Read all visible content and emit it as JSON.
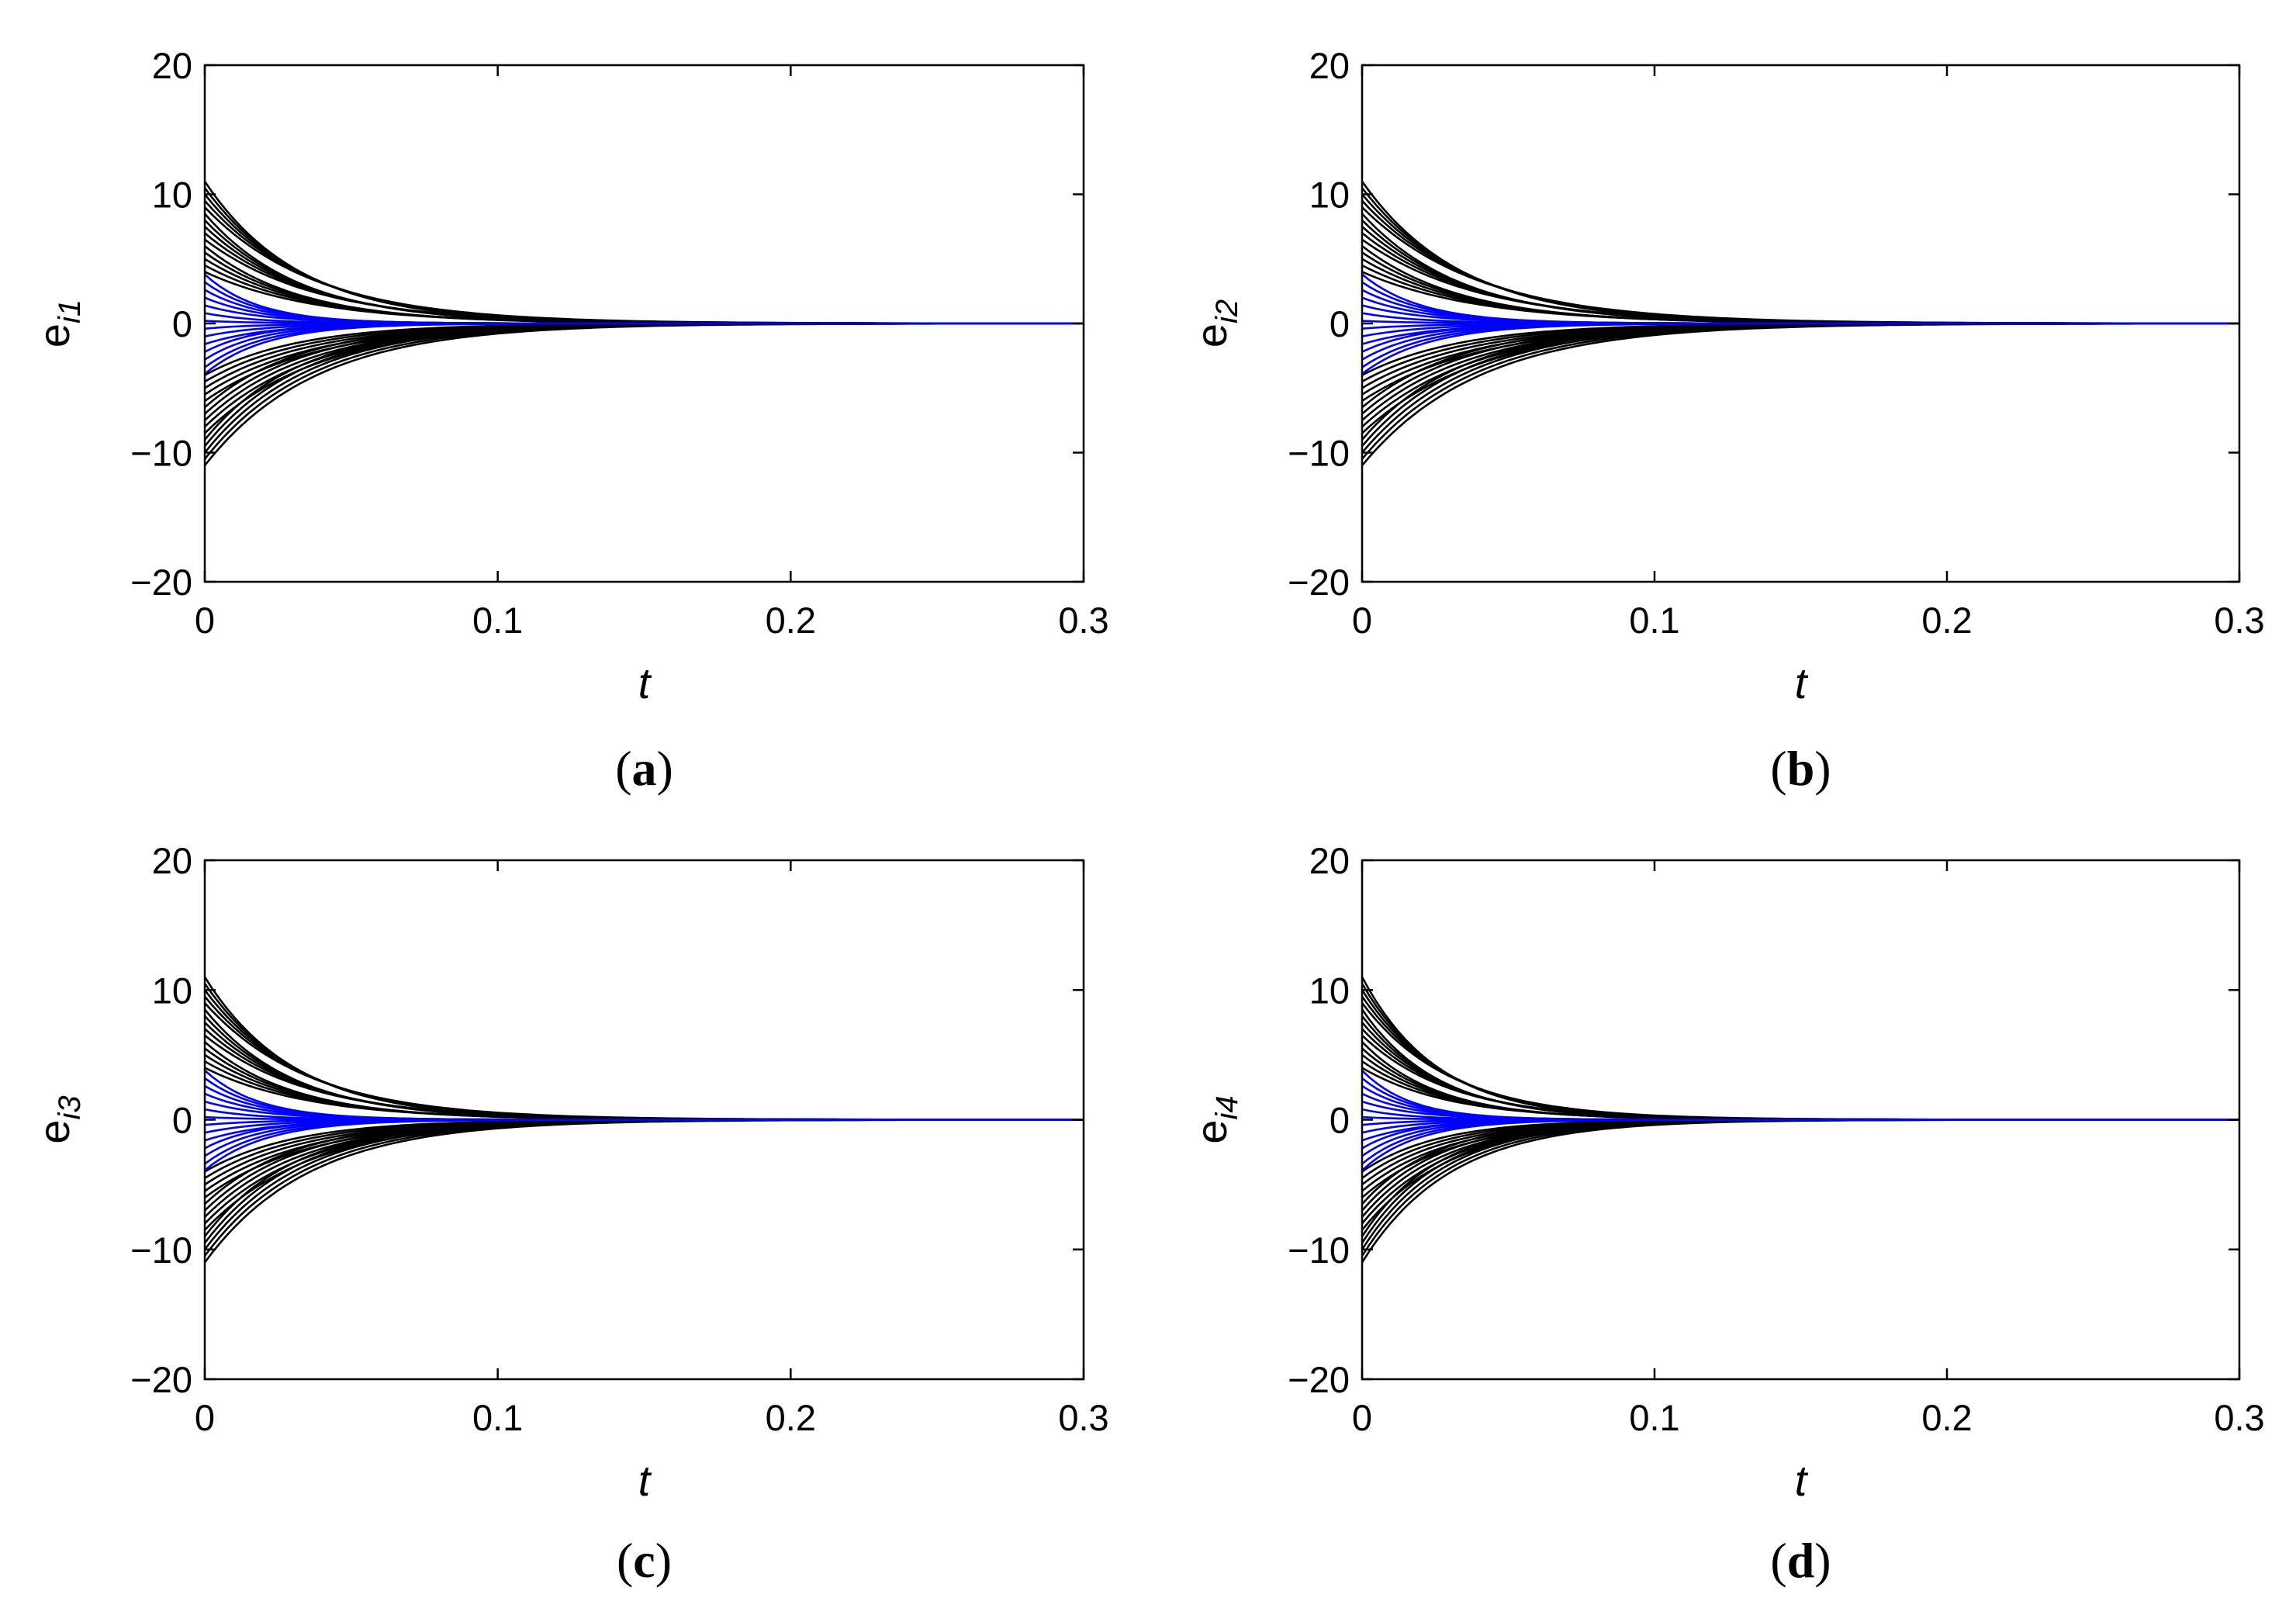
{
  "chart_data": [
    {
      "type": "line",
      "caption": {
        "open": "(",
        "letter": "a",
        "close": ")"
      },
      "xlabel": "t",
      "ylabel": {
        "main": "e",
        "sub": "i1"
      },
      "xlim": [
        0,
        0.3
      ],
      "ylim": [
        -20,
        20
      ],
      "xticks": [
        0,
        0.1,
        0.2,
        0.3
      ],
      "xtick_labels": [
        "0",
        "0.1",
        "0.2",
        "0.3"
      ],
      "yticks": [
        20,
        10,
        0,
        -10,
        -20
      ],
      "ytick_labels": [
        "20",
        "10",
        "0",
        "−10",
        "−20"
      ],
      "grid": false,
      "series": [
        {
          "color": "#000000",
          "initial_values": [
            11,
            10.5,
            10,
            9.5,
            9,
            8.5,
            8,
            7.5,
            7,
            6.5,
            6,
            5.5,
            5,
            4.5,
            4,
            -4,
            -4.5,
            -5,
            -5.5,
            -6,
            -6.5,
            -7,
            -7.5,
            -8,
            -8.5,
            -9,
            -9.5,
            -10,
            -10.5,
            -11
          ],
          "decay_time_constant": 0.035,
          "converges_to": 0
        },
        {
          "color": "#0000ff",
          "initial_values": [
            3.8,
            3.2,
            2.6,
            2,
            1.4,
            0.8,
            0.2,
            -0.4,
            -1,
            -1.6,
            -2.2,
            -2.8,
            -3.4,
            -3.9
          ],
          "decay_time_constant": 0.02,
          "converges_to": 0
        }
      ]
    },
    {
      "type": "line",
      "caption": {
        "open": "(",
        "letter": "b",
        "close": ")"
      },
      "xlabel": "t",
      "ylabel": {
        "main": "e",
        "sub": "i2"
      },
      "xlim": [
        0,
        0.3
      ],
      "ylim": [
        -20,
        20
      ],
      "xticks": [
        0,
        0.1,
        0.2,
        0.3
      ],
      "xtick_labels": [
        "0",
        "0.1",
        "0.2",
        "0.3"
      ],
      "yticks": [
        20,
        10,
        0,
        -10,
        -20
      ],
      "ytick_labels": [
        "20",
        "10",
        "0",
        "−10",
        "−20"
      ],
      "grid": false,
      "series": [
        {
          "color": "#000000",
          "initial_values": [
            11,
            10.5,
            10,
            9.5,
            9,
            8.5,
            8,
            7.5,
            7,
            6.5,
            6,
            5.5,
            5,
            4.5,
            4,
            -4,
            -4.5,
            -5,
            -5.5,
            -6,
            -6.5,
            -7,
            -7.5,
            -8,
            -8.5,
            -9,
            -9.5,
            -10,
            -10.5,
            -11
          ],
          "decay_time_constant": 0.037,
          "converges_to": 0
        },
        {
          "color": "#0000ff",
          "initial_values": [
            3.8,
            3.2,
            2.6,
            2,
            1.4,
            0.8,
            0.2,
            -0.4,
            -1,
            -1.6,
            -2.2,
            -2.8,
            -3.4,
            -3.9
          ],
          "decay_time_constant": 0.022,
          "converges_to": 0
        }
      ]
    },
    {
      "type": "line",
      "caption": {
        "open": "(",
        "letter": "c",
        "close": ")"
      },
      "xlabel": "t",
      "ylabel": {
        "main": "e",
        "sub": "i3"
      },
      "xlim": [
        0,
        0.3
      ],
      "ylim": [
        -20,
        20
      ],
      "xticks": [
        0,
        0.1,
        0.2,
        0.3
      ],
      "xtick_labels": [
        "0",
        "0.1",
        "0.2",
        "0.3"
      ],
      "yticks": [
        20,
        10,
        0,
        -10,
        -20
      ],
      "ytick_labels": [
        "20",
        "10",
        "0",
        "−10",
        "−20"
      ],
      "grid": false,
      "series": [
        {
          "color": "#000000",
          "initial_values": [
            11,
            10.5,
            10,
            9.5,
            9,
            8.5,
            8,
            7.5,
            7,
            6.5,
            6,
            5.5,
            5,
            4.5,
            4,
            -4,
            -4.5,
            -5,
            -5.5,
            -6,
            -6.5,
            -7,
            -7.5,
            -8,
            -8.5,
            -9,
            -9.5,
            -10,
            -10.5,
            -11
          ],
          "decay_time_constant": 0.033,
          "converges_to": 0
        },
        {
          "color": "#0000ff",
          "initial_values": [
            3.8,
            3.2,
            2.6,
            2,
            1.4,
            0.8,
            0.2,
            -0.4,
            -1,
            -1.6,
            -2.2,
            -2.8,
            -3.4,
            -3.9
          ],
          "decay_time_constant": 0.02,
          "converges_to": 0
        }
      ]
    },
    {
      "type": "line",
      "caption": {
        "open": "(",
        "letter": "d",
        "close": ")"
      },
      "xlabel": "t",
      "ylabel": {
        "main": "e",
        "sub": "i4"
      },
      "xlim": [
        0,
        0.3
      ],
      "ylim": [
        -20,
        20
      ],
      "xticks": [
        0,
        0.1,
        0.2,
        0.3
      ],
      "xtick_labels": [
        "0",
        "0.1",
        "0.2",
        "0.3"
      ],
      "yticks": [
        20,
        10,
        0,
        -10,
        -20
      ],
      "ytick_labels": [
        "20",
        "10",
        "0",
        "−10",
        "−20"
      ],
      "grid": false,
      "series": [
        {
          "color": "#000000",
          "initial_values": [
            11,
            10.5,
            10,
            9.5,
            9,
            8.5,
            8,
            7.5,
            7,
            6.5,
            6,
            5.5,
            5,
            4.5,
            4,
            -4,
            -4.5,
            -5,
            -5.5,
            -6,
            -6.5,
            -7,
            -7.5,
            -8,
            -8.5,
            -9,
            -9.5,
            -10,
            -10.5,
            -11
          ],
          "decay_time_constant": 0.028,
          "converges_to": 0
        },
        {
          "color": "#0000ff",
          "initial_values": [
            3.8,
            3.2,
            2.6,
            2,
            1.4,
            0.8,
            0.2,
            -0.4,
            -1,
            -1.6,
            -2.2,
            -2.8,
            -3.4,
            -3.9
          ],
          "decay_time_constant": 0.018,
          "converges_to": 0
        }
      ]
    }
  ]
}
